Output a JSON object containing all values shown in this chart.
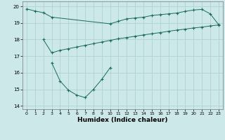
{
  "xlabel": "Humidex (Indice chaleur)",
  "bg_color": "#cce8e8",
  "line_color": "#1a6b5a",
  "grid_color": "#aacece",
  "xlim": [
    -0.5,
    23.5
  ],
  "ylim": [
    13.8,
    20.3
  ],
  "xticks": [
    0,
    1,
    2,
    3,
    4,
    5,
    6,
    7,
    8,
    9,
    10,
    11,
    12,
    13,
    14,
    15,
    16,
    17,
    18,
    19,
    20,
    21,
    22,
    23
  ],
  "yticks": [
    14,
    15,
    16,
    17,
    18,
    19,
    20
  ],
  "line1_x": [
    0,
    1,
    2,
    3,
    10,
    11,
    12,
    13,
    14,
    15,
    16,
    17,
    18,
    19,
    20,
    21,
    22,
    23
  ],
  "line1_y": [
    19.85,
    19.72,
    19.62,
    19.35,
    18.95,
    19.1,
    19.25,
    19.3,
    19.35,
    19.45,
    19.5,
    19.55,
    19.6,
    19.7,
    19.78,
    19.82,
    19.55,
    18.9
  ],
  "line2_x": [
    2,
    3,
    4,
    5,
    6,
    7,
    8,
    9,
    10,
    11,
    12,
    13,
    14,
    15,
    16,
    17,
    18,
    19,
    20,
    21,
    22,
    23
  ],
  "line2_y": [
    18.0,
    17.2,
    17.35,
    17.45,
    17.55,
    17.65,
    17.75,
    17.85,
    17.95,
    18.05,
    18.12,
    18.2,
    18.28,
    18.35,
    18.42,
    18.5,
    18.57,
    18.63,
    18.7,
    18.75,
    18.82,
    18.88
  ],
  "line3_x": [
    3,
    4,
    5,
    6,
    7,
    8,
    9,
    10
  ],
  "line3_y": [
    16.6,
    15.5,
    14.95,
    14.65,
    14.5,
    15.0,
    15.6,
    16.3
  ]
}
